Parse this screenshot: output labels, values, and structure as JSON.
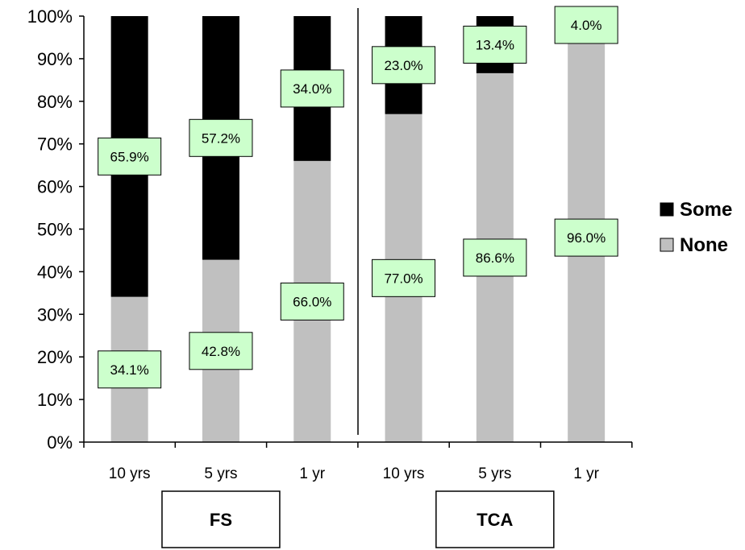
{
  "chart_data": {
    "type": "bar",
    "stacked": true,
    "percent": true,
    "categories": [
      "10 yrs",
      "5 yrs",
      "1 yr",
      "10 yrs",
      "5 yrs",
      "1 yr"
    ],
    "groups": [
      {
        "name": "FS",
        "categories": [
          0,
          1,
          2
        ]
      },
      {
        "name": "TCA",
        "categories": [
          3,
          4,
          5
        ]
      }
    ],
    "series": [
      {
        "name": "None",
        "color": "#c0c0c0",
        "values": [
          34.1,
          42.8,
          66.0,
          77.0,
          86.6,
          96.0
        ],
        "labels": [
          "34.1%",
          "42.8%",
          "66.0%",
          "77.0%",
          "86.6%",
          "96.0%"
        ]
      },
      {
        "name": "Some",
        "color": "#000000",
        "values": [
          65.9,
          57.2,
          34.0,
          23.0,
          13.4,
          4.0
        ],
        "labels": [
          "65.9%",
          "57.2%",
          "34.0%",
          "23.0%",
          "13.4%",
          "4.0%"
        ]
      }
    ],
    "yticks": [
      "0%",
      "10%",
      "20%",
      "30%",
      "40%",
      "50%",
      "60%",
      "70%",
      "80%",
      "90%",
      "100%"
    ],
    "ylim": [
      0,
      100
    ],
    "grid": false,
    "legend_position": "right",
    "label_box_color": "#ccffcc"
  }
}
